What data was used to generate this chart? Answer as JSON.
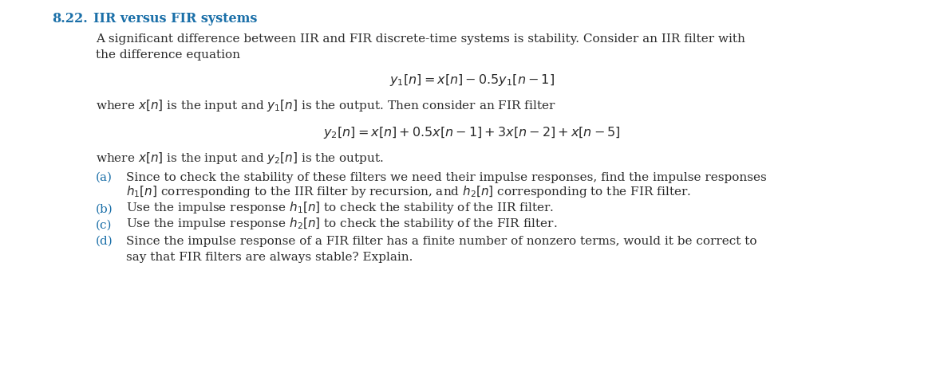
{
  "bg_color": "#ffffff",
  "number_color": "#1a6fa8",
  "title_color": "#1a6fa8",
  "body_color": "#2b2b2b",
  "label_color": "#1a6fa8",
  "number_text": "8.22.",
  "title_text": "IIR versus FIR systems",
  "intro_line1": "A significant difference between IIR and FIR discrete-time systems is stability. Consider an IIR filter with",
  "intro_line2": "the difference equation",
  "eq1": "$y_1[n] = x[n] - 0.5y_1[n-1]$",
  "mid_text": "where $x[n]$ is the input and $y_1[n]$ is the output. Then consider an FIR filter",
  "eq2": "$y_2[n] = x[n] + 0.5x[n-1] + 3x[n-2] + x[n-5]$",
  "after_eq2": "where $x[n]$ is the input and $y_2[n]$ is the output.",
  "part_a_label": "(a)",
  "part_a_line1": "Since to check the stability of these filters we need their impulse responses, find the impulse responses",
  "part_a_line2": "$h_1[n]$ corresponding to the IIR filter by recursion, and $h_2[n]$ corresponding to the FIR filter.",
  "part_b_label": "(b)",
  "part_b_text": "Use the impulse response $h_1[n]$ to check the stability of the IIR filter.",
  "part_c_label": "(c)",
  "part_c_text": "Use the impulse response $h_2[n]$ to check the stability of the FIR filter.",
  "part_d_label": "(d)",
  "part_d_line1": "Since the impulse response of a FIR filter has a finite number of nonzero terms, would it be correct to",
  "part_d_line2": "say that FIR filters are always stable? Explain.",
  "font_size_title": 11.5,
  "font_size_body": 11.0,
  "font_size_eq": 11.5
}
